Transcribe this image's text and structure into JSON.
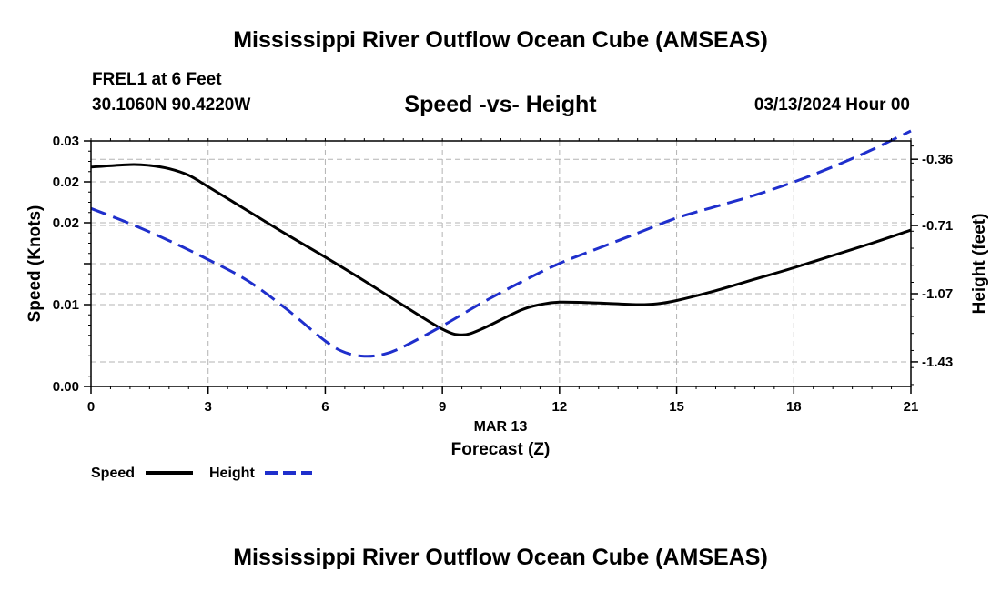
{
  "header": {
    "title": "Mississippi River Outflow Ocean Cube (AMSEAS)",
    "station_name": "FREL1 at 6 Feet",
    "station_coords": "30.1060N  90.4220W",
    "subtitle": "Speed -vs- Height",
    "date": "03/13/2024 Hour 00"
  },
  "footer": {
    "title": "Mississippi River Outflow Ocean Cube (AMSEAS)"
  },
  "chart_data": {
    "type": "line",
    "title": "Speed -vs- Height",
    "xlabel": "Forecast (Z)",
    "xlabel_date": "MAR 13",
    "ylabel_left": "Speed (Knots)",
    "ylabel_right": "Height (feet)",
    "xlim": [
      0,
      21
    ],
    "x_ticks": [
      0,
      3,
      6,
      9,
      12,
      15,
      18,
      21
    ],
    "x_tick_labels": [
      "0",
      "3",
      "6",
      "9",
      "12",
      "15",
      "18",
      "21"
    ],
    "ylim_left": [
      0,
      0.03
    ],
    "y_left_ticks": [
      0,
      0.01,
      0.015,
      0.02,
      0.025,
      0.03
    ],
    "y_left_tick_labels": [
      "0.00",
      "0.01",
      "0.02",
      "0.02",
      "0.03"
    ],
    "y_left_tick_label_values": [
      0,
      0.01,
      0.02,
      0.025,
      0.03
    ],
    "ylim_right": [
      -1.56,
      -0.263
    ],
    "y_right_ticks": [
      -1.43,
      -1.07,
      -0.71,
      -0.36
    ],
    "y_right_tick_labels": [
      "-1.43",
      "-1.07",
      "-0.71",
      "-0.36"
    ],
    "grid": true,
    "legend_position": "bottom-left",
    "series": [
      {
        "name": "Speed",
        "axis": "left",
        "color": "#000000",
        "style": "solid",
        "x": [
          0,
          1,
          1.5,
          2,
          2.5,
          3,
          4,
          5,
          6,
          7,
          8,
          9,
          9.5,
          10,
          11,
          11.5,
          12,
          13,
          14,
          14.5,
          15,
          16,
          17,
          18,
          19,
          20,
          21
        ],
        "values": [
          0.0268,
          0.0271,
          0.027,
          0.0266,
          0.0258,
          0.0244,
          0.0215,
          0.0186,
          0.0158,
          0.0129,
          0.0099,
          0.007,
          0.0063,
          0.007,
          0.0093,
          0.01,
          0.0103,
          0.0102,
          0.01,
          0.0101,
          0.0105,
          0.0117,
          0.0131,
          0.0145,
          0.016,
          0.0175,
          0.0191
        ]
      },
      {
        "name": "Height",
        "axis": "right",
        "color": "#1f2fcc",
        "style": "dashed",
        "x": [
          0,
          1,
          2,
          3,
          4,
          5,
          6,
          6.5,
          7,
          7.5,
          8,
          9,
          10,
          11,
          12,
          13,
          14,
          15,
          16,
          17,
          18,
          19,
          20,
          21
        ],
        "values": [
          -0.62,
          -0.7,
          -0.79,
          -0.89,
          -1.0,
          -1.15,
          -1.32,
          -1.38,
          -1.4,
          -1.39,
          -1.35,
          -1.24,
          -1.12,
          -1.01,
          -0.91,
          -0.83,
          -0.75,
          -0.67,
          -0.61,
          -0.55,
          -0.48,
          -0.4,
          -0.31,
          -0.21
        ]
      }
    ]
  }
}
